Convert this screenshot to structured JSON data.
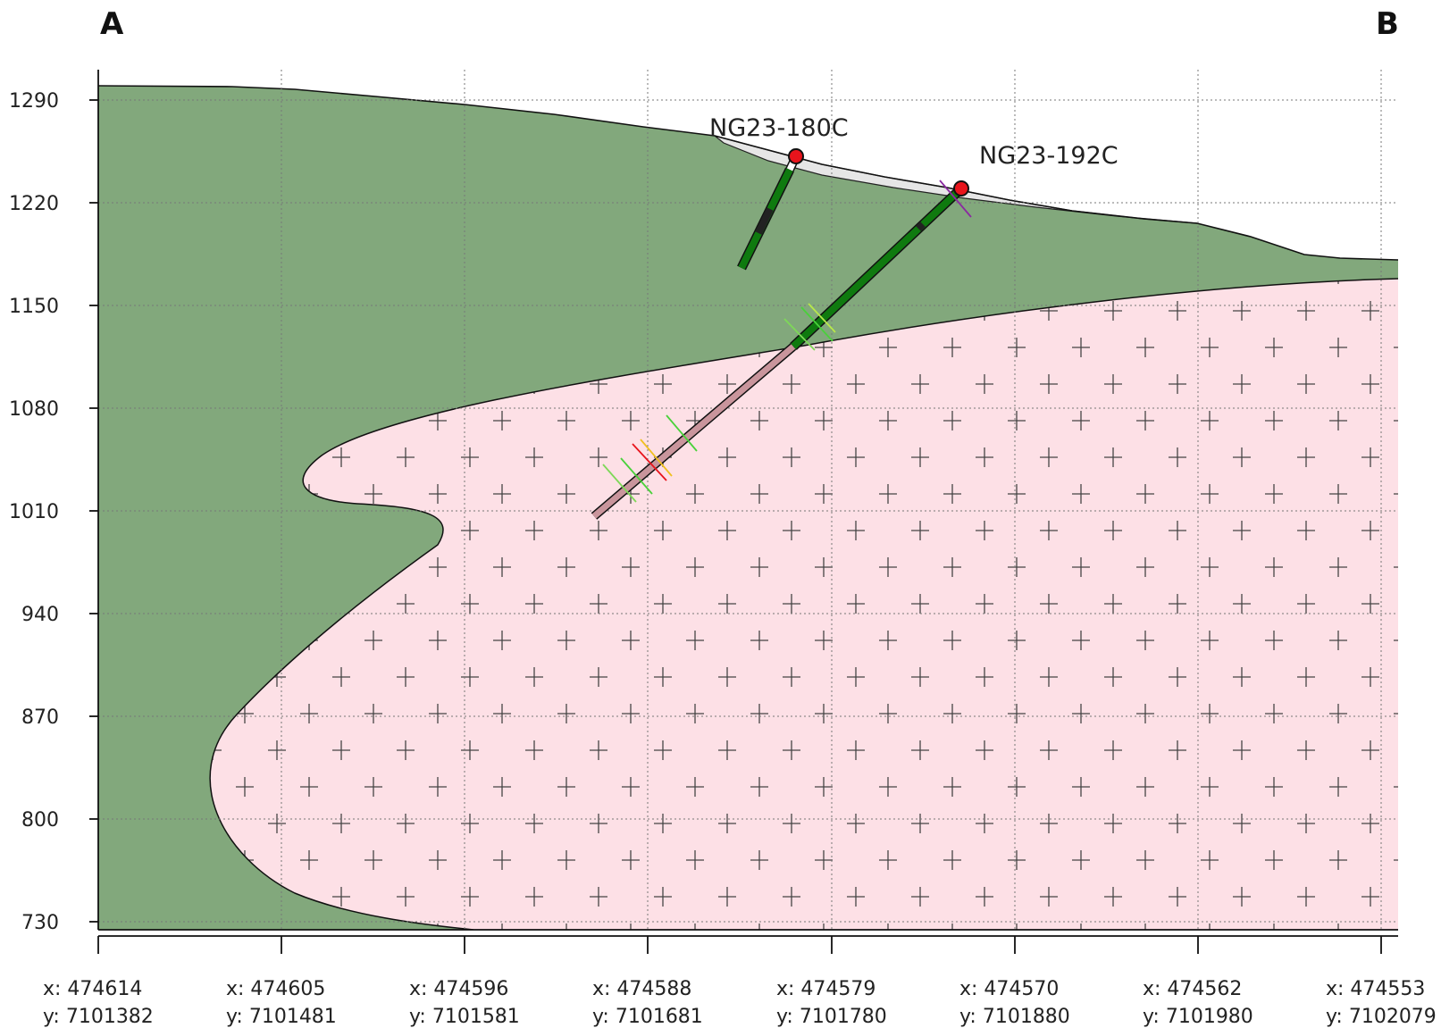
{
  "section": {
    "start_label": "A",
    "end_label": "B"
  },
  "colors": {
    "host_rock": "#82a87c",
    "intrusion": "#fde0e6",
    "overburden": "#e6e6e6",
    "collar": "#e8141c",
    "hole_green": "#0f7a0f",
    "hole_pink": "#c9959c",
    "hole_dark": "#222222",
    "grid": "#777777"
  },
  "pattern": {
    "intrusion_symbol": "cross-dash"
  },
  "axes": {
    "y_ticks": [
      {
        "value": 1290,
        "label": "1290"
      },
      {
        "value": 1220,
        "label": "1220"
      },
      {
        "value": 1150,
        "label": "1150"
      },
      {
        "value": 1080,
        "label": "1080"
      },
      {
        "value": 1010,
        "label": "1010"
      },
      {
        "value": 940,
        "label": "940"
      },
      {
        "value": 870,
        "label": "870"
      },
      {
        "value": 800,
        "label": "800"
      },
      {
        "value": 730,
        "label": "730"
      }
    ],
    "x_ticks": [
      {
        "x": "x: 474614",
        "y": "y: 7101382"
      },
      {
        "x": "x: 474605",
        "y": "y: 7101481"
      },
      {
        "x": "x: 474596",
        "y": "y: 7101581"
      },
      {
        "x": "x: 474588",
        "y": "y: 7101681"
      },
      {
        "x": "x: 474579",
        "y": "y: 7101780"
      },
      {
        "x": "x: 474570",
        "y": "y: 7101880"
      },
      {
        "x": "x: 474562",
        "y": "y: 7101980"
      },
      {
        "x": "x: 474553",
        "y": "y: 7102079"
      }
    ]
  },
  "drillholes": [
    {
      "name": "NG23-180C"
    },
    {
      "name": "NG23-192C"
    }
  ]
}
